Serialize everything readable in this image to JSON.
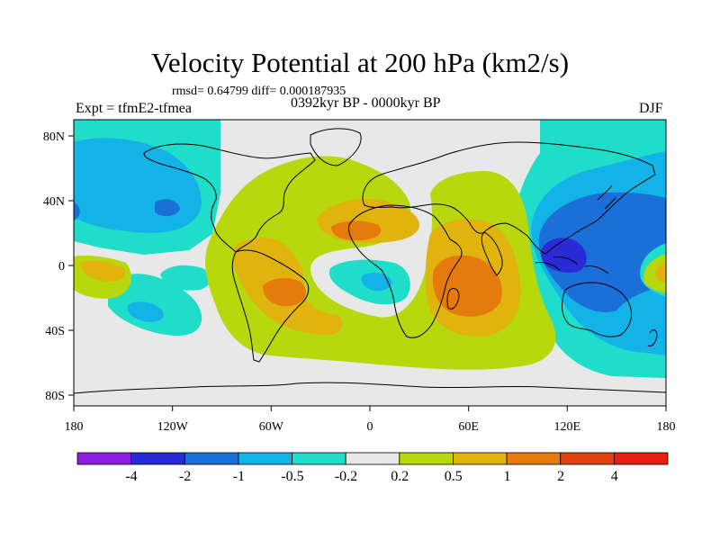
{
  "title": "Velocity Potential at 200 hPa (km2/s)",
  "stats": "rmsd= 0.64799 diff= 0.000187935",
  "experiment": "Expt = tfmE2-tfmea",
  "period": "0392kyr BP - 0000kyr BP",
  "season": "DJF",
  "lat_labels": [
    "80N",
    "40N",
    "0",
    "40S",
    "80S"
  ],
  "lon_labels": [
    "180",
    "120W",
    "60W",
    "0",
    "60E",
    "120E",
    "180"
  ],
  "colorbar": {
    "labels": [
      "-4",
      "-2",
      "-1",
      "-0.5",
      "-0.2",
      "0.2",
      "0.5",
      "1",
      "2",
      "4"
    ],
    "colors": [
      "#8a1fe0",
      "#2a2bd6",
      "#1a6fd8",
      "#13b3e8",
      "#1fddc8",
      "#e8e8e8",
      "#b6d80c",
      "#e0b30f",
      "#e47b0c",
      "#e0420f",
      "#e71f12"
    ]
  }
}
